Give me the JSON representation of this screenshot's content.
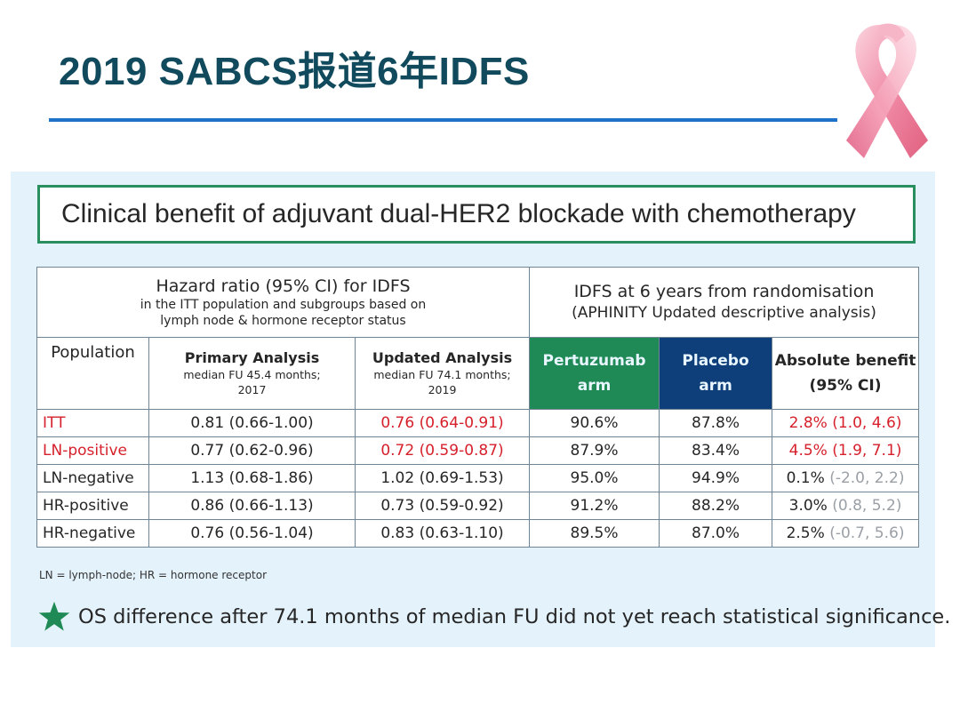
{
  "slide": {
    "title": "2019 SABCS报道6年IDFS",
    "ribbon_icon": "pink-ribbon-icon",
    "accent_color": "#1e73c8",
    "title_color": "#114a5c"
  },
  "panel": {
    "headline": "Clinical benefit of adjuvant dual-HER2 blockade with chemotherapy",
    "table": {
      "hr_group": {
        "title": "Hazard ratio (95% CI) for IDFS",
        "subtitle_line1": "in the ITT population and subgroups based on",
        "subtitle_line2": "lymph node & hormone receptor status"
      },
      "idfs_group": {
        "title": "IDFS at 6 years from randomisation",
        "subtitle": "(APHINITY Updated descriptive analysis)"
      },
      "columns": {
        "population": "Population",
        "primary": {
          "label": "Primary Analysis",
          "sub1": "median FU 45.4 months;",
          "sub2": "2017"
        },
        "updated": {
          "label": "Updated Analysis",
          "sub1": "median FU 74.1 months;",
          "sub2": "2019"
        },
        "pertuzumab": {
          "line1": "Pertuzumab",
          "line2": "arm"
        },
        "placebo": {
          "line1": "Placebo",
          "line2": "arm"
        },
        "benefit": {
          "line1": "Absolute benefit",
          "line2": "(95% CI)"
        }
      },
      "rows": [
        {
          "population": "ITT",
          "primary": "0.81 (0.66-1.00)",
          "updated": "0.76 (0.64-0.91)",
          "pertuzumab": "90.6%",
          "placebo": "87.8%",
          "benefit_value": "2.8%",
          "benefit_ci": "(1.0, 4.6)"
        },
        {
          "population": "LN-positive",
          "primary": "0.77 (0.62-0.96)",
          "updated": "0.72 (0.59-0.87)",
          "pertuzumab": "87.9%",
          "placebo": "83.4%",
          "benefit_value": "4.5%",
          "benefit_ci": "(1.9, 7.1)"
        },
        {
          "population": "LN-negative",
          "primary": "1.13 (0.68-1.86)",
          "updated": "1.02 (0.69-1.53)",
          "pertuzumab": "95.0%",
          "placebo": "94.9%",
          "benefit_value": "0.1%",
          "benefit_ci": "(-2.0, 2.2)"
        },
        {
          "population": "HR-positive",
          "primary": "0.86 (0.66-1.13)",
          "updated": "0.73 (0.59-0.92)",
          "pertuzumab": "91.2%",
          "placebo": "88.2%",
          "benefit_value": "3.0%",
          "benefit_ci": "(0.8, 5.2)"
        },
        {
          "population": "HR-negative",
          "primary": "0.76 (0.56-1.04)",
          "updated": "0.83 (0.63-1.10)",
          "pertuzumab": "89.5%",
          "placebo": "87.0%",
          "benefit_value": "2.5%",
          "benefit_ci": "(-0.7, 5.6)"
        }
      ],
      "colors": {
        "highlight_red": "#d6202b",
        "pertuzumab_header": "#1f8a55",
        "placebo_header": "#0f3f7a",
        "ci_grey": "#9aa0a6"
      }
    },
    "footnote": "LN = lymph-node; HR = hormone receptor",
    "star_note": {
      "icon": "green-star-icon",
      "text": "OS difference after 74.1 months of median FU did not yet reach statistical significance."
    }
  }
}
